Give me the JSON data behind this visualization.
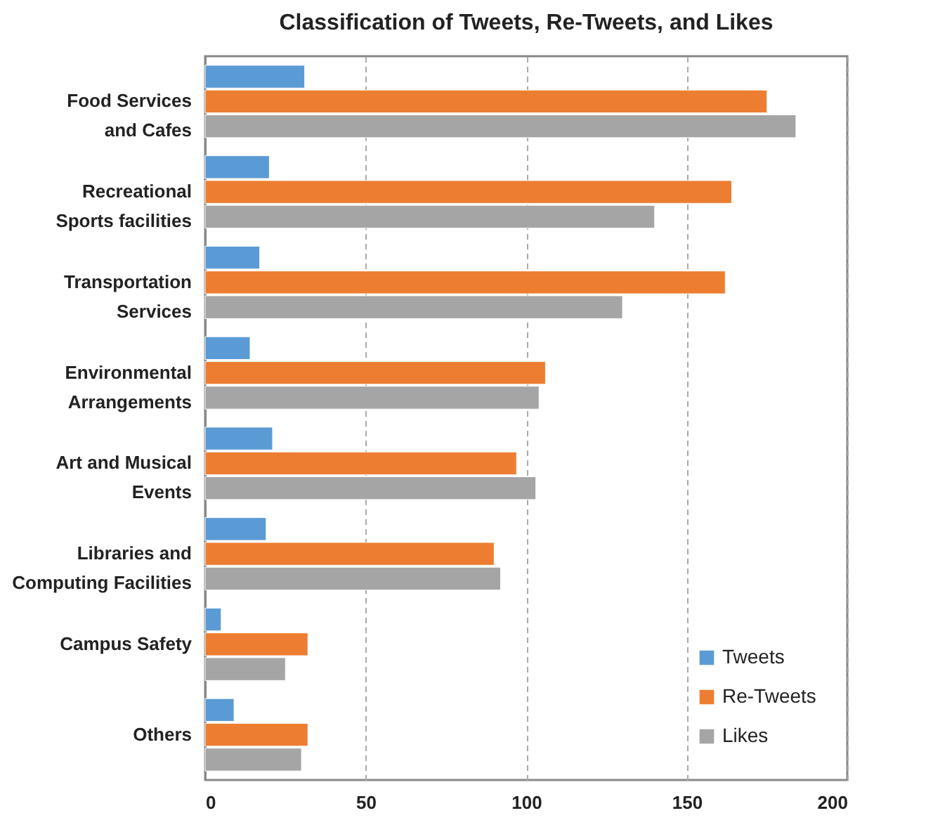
{
  "chart_data": {
    "type": "bar",
    "orientation": "horizontal",
    "title": "Classification of Tweets, Re-Tweets, and Likes",
    "categories": [
      "Food Services\nand Cafes",
      "Recreational\nSports facilities",
      "Transportation\nServices",
      "Environmental\nArrangements",
      "Art and Musical\nEvents",
      "Libraries and\nComputing Facilities",
      "Campus Safety",
      "Others"
    ],
    "series": [
      {
        "name": "Tweets",
        "color": "#5b9bd5",
        "values": [
          31,
          20,
          17,
          14,
          21,
          19,
          5,
          9
        ]
      },
      {
        "name": "Re-Tweets",
        "color": "#ed7d31",
        "values": [
          175,
          164,
          162,
          106,
          97,
          90,
          32,
          32
        ]
      },
      {
        "name": "Likes",
        "color": "#a5a5a5",
        "values": [
          184,
          140,
          130,
          104,
          103,
          92,
          25,
          30
        ]
      }
    ],
    "xlim": [
      0,
      200
    ],
    "xticks": [
      0,
      50,
      100,
      150,
      200
    ],
    "grid": "x",
    "legend": "bottom right"
  }
}
